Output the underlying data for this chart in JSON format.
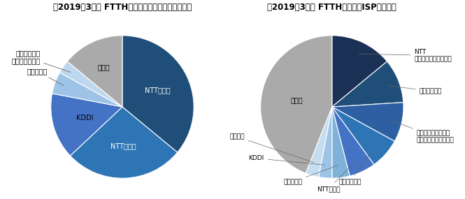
{
  "chart1_title": "【2019年3月末 FTTH契約数・回線事業者シェア】",
  "chart1_labels": [
    "NTT東日本",
    "NTT西日本",
    "KDDI",
    "オプテージ",
    "アルテリア・\nネットワークス",
    "その他"
  ],
  "chart1_values": [
    36,
    27,
    15,
    5,
    3,
    14
  ],
  "chart1_colors": [
    "#1f4e79",
    "#2e75b6",
    "#4472c4",
    "#9dc3e6",
    "#bdd7ee",
    "#aaaaaa"
  ],
  "chart2_title": "【2019年3月末 FTTH契約数・ISPシェア】",
  "chart2_labels": [
    "NTT\nコミュニケーションズ",
    "ソフトバンク",
    "ソニーネットワーク\nコミュニケーションズ",
    "ビッグローブ",
    "NTTぷらら",
    "オプテージ",
    "KDDI",
    "ニフティ",
    "その他"
  ],
  "chart2_values": [
    14,
    10,
    9,
    7,
    6,
    4,
    3,
    3,
    44
  ],
  "chart2_colors": [
    "#1a3055",
    "#1f4e79",
    "#2e5fa3",
    "#2e75b6",
    "#4472c4",
    "#7fb2d9",
    "#9dc3e6",
    "#c5ddf0",
    "#aaaaaa"
  ],
  "background_color": "#ffffff",
  "title_fontsize": 8.5,
  "label_fontsize": 7.0
}
